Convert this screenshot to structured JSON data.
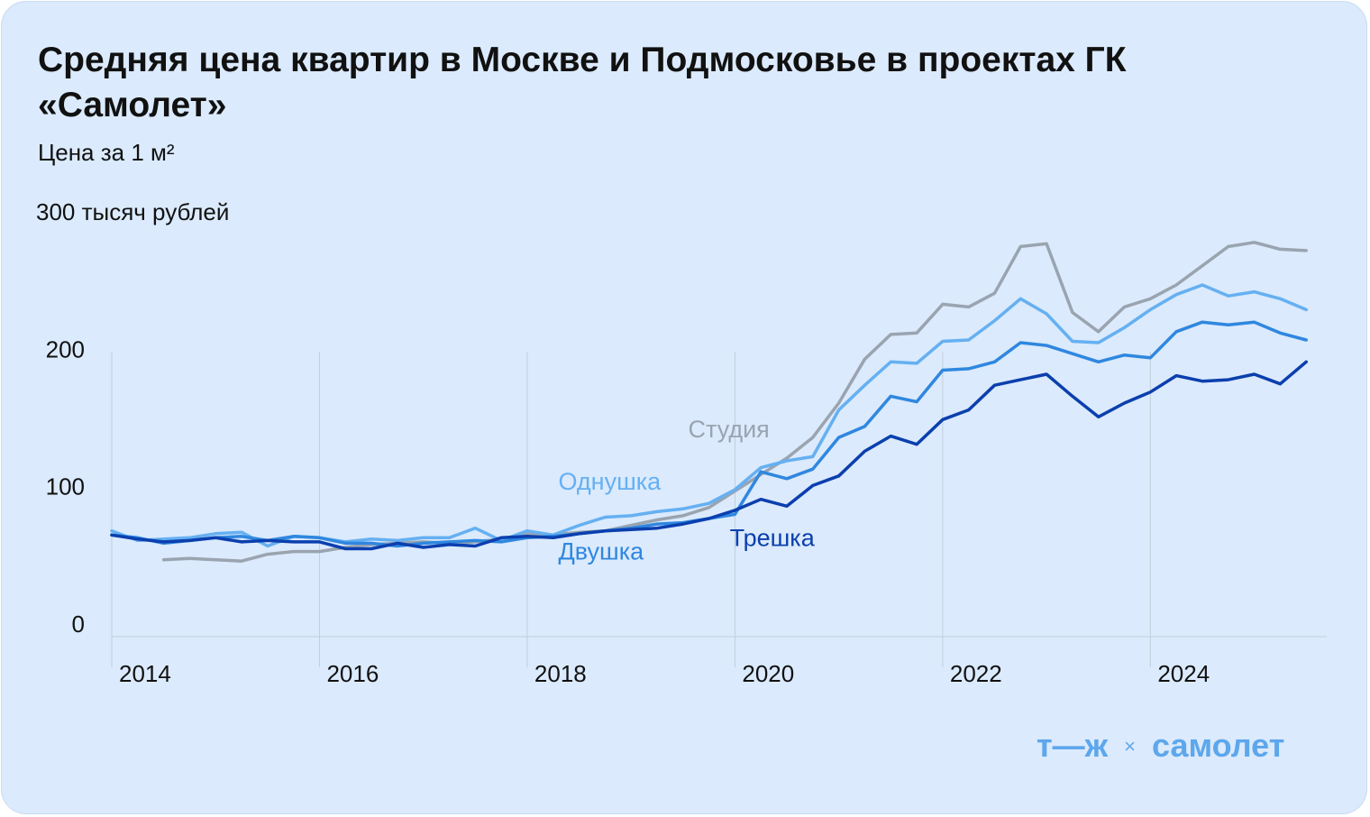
{
  "title": "Средняя цена квартир в Москве и Подмосковье в проектах ГК «Самолет»",
  "subtitle": "Цена за 1 м²",
  "logo": {
    "left": "т—ж",
    "separator": "×",
    "right": "самолет"
  },
  "colors": {
    "background": "#dbeafc",
    "grid": "#c3cedb",
    "text": "#111111"
  },
  "chart_data": {
    "type": "line",
    "ylim": [
      0,
      300
    ],
    "yticks": [
      {
        "value": 300,
        "label": "300 тысяч рублей"
      },
      {
        "value": 200,
        "label": "200"
      },
      {
        "value": 100,
        "label": "100"
      },
      {
        "value": 0,
        "label": "0"
      }
    ],
    "xlim": [
      2014,
      2025.75
    ],
    "xticks": [
      {
        "value": 2014,
        "label": "2014"
      },
      {
        "value": 2016,
        "label": "2016"
      },
      {
        "value": 2018,
        "label": "2018"
      },
      {
        "value": 2020,
        "label": "2020"
      },
      {
        "value": 2022,
        "label": "2022"
      },
      {
        "value": 2024,
        "label": "2024"
      }
    ],
    "grid": "vertical",
    "series": [
      {
        "name": "Студия",
        "color": "#9aa4b0",
        "label_x": 2019.55,
        "label_y": 145,
        "x": [
          2014.5,
          2014.75,
          2015,
          2015.25,
          2015.5,
          2015.75,
          2016,
          2016.25,
          2016.5,
          2016.75,
          2017,
          2017.25,
          2017.5,
          2017.75,
          2018,
          2018.25,
          2018.5,
          2018.75,
          2019,
          2019.25,
          2019.5,
          2019.75,
          2020,
          2020.25,
          2020.5,
          2020.75,
          2021,
          2021.25,
          2021.5,
          2021.75,
          2022,
          2022.25,
          2022.5,
          2022.75,
          2023,
          2023.25,
          2023.5,
          2023.75,
          2024,
          2024.25,
          2024.5,
          2024.75,
          2025,
          2025.25,
          2025.5
        ],
        "y": [
          56,
          57,
          56,
          55,
          60,
          62,
          62,
          65,
          67,
          68,
          69,
          68,
          69,
          71,
          75,
          74,
          76,
          77,
          81,
          85,
          88,
          94,
          106,
          118,
          130,
          145,
          170,
          202,
          220,
          221,
          242,
          240,
          250,
          284,
          286,
          236,
          222,
          240,
          246,
          256,
          270,
          284,
          287,
          282,
          281
        ]
      },
      {
        "name": "Однушка",
        "color": "#65b0f2",
        "label_x": 2018.3,
        "label_y": 107,
        "x": [
          2014,
          2014.25,
          2014.5,
          2014.75,
          2015,
          2015.25,
          2015.5,
          2015.75,
          2016,
          2016.25,
          2016.5,
          2016.75,
          2017,
          2017.25,
          2017.5,
          2017.75,
          2018,
          2018.25,
          2018.5,
          2018.75,
          2019,
          2019.25,
          2019.5,
          2019.75,
          2020,
          2020.25,
          2020.5,
          2020.75,
          2021,
          2021.25,
          2021.5,
          2021.75,
          2022,
          2022.25,
          2022.5,
          2022.75,
          2023,
          2023.25,
          2023.5,
          2023.75,
          2024,
          2024.25,
          2024.5,
          2024.75,
          2025,
          2025.25,
          2025.5
        ],
        "y": [
          77,
          70,
          71,
          72,
          75,
          76,
          66,
          73,
          72,
          69,
          71,
          70,
          72,
          72,
          79,
          70,
          77,
          74,
          81,
          87,
          88,
          91,
          93,
          97,
          107,
          123,
          128,
          131,
          165,
          183,
          200,
          199,
          215,
          216,
          230,
          246,
          235,
          215,
          214,
          225,
          238,
          249,
          256,
          248,
          251,
          246,
          238
        ]
      },
      {
        "name": "Двушка",
        "color": "#2f87df",
        "label_x": 2018.3,
        "label_y": 56,
        "x": [
          2014,
          2014.25,
          2014.5,
          2014.75,
          2015,
          2015.25,
          2015.5,
          2015.75,
          2016,
          2016.25,
          2016.5,
          2016.75,
          2017,
          2017.25,
          2017.5,
          2017.75,
          2018,
          2018.25,
          2018.5,
          2018.75,
          2019,
          2019.25,
          2019.5,
          2019.75,
          2020,
          2020.25,
          2020.5,
          2020.75,
          2021,
          2021.25,
          2021.5,
          2021.75,
          2022,
          2022.25,
          2022.5,
          2022.75,
          2023,
          2023.25,
          2023.5,
          2023.75,
          2024,
          2024.25,
          2024.5,
          2024.75,
          2025,
          2025.25,
          2025.5
        ],
        "y": [
          74,
          72,
          68,
          70,
          72,
          73,
          70,
          73,
          72,
          68,
          68,
          66,
          68,
          69,
          70,
          69,
          72,
          73,
          75,
          77,
          79,
          82,
          83,
          86,
          89,
          120,
          115,
          122,
          145,
          153,
          175,
          171,
          194,
          195,
          200,
          214,
          212,
          206,
          200,
          205,
          203,
          222,
          229,
          227,
          229,
          221,
          216
        ]
      },
      {
        "name": "Трешка",
        "color": "#0b3fae",
        "label_x": 2019.95,
        "label_y": 66,
        "x": [
          2014,
          2014.25,
          2014.5,
          2014.75,
          2015,
          2015.25,
          2015.5,
          2015.75,
          2016,
          2016.25,
          2016.5,
          2016.75,
          2017,
          2017.25,
          2017.5,
          2017.75,
          2018,
          2018.25,
          2018.5,
          2018.75,
          2019,
          2019.25,
          2019.5,
          2019.75,
          2020,
          2020.25,
          2020.5,
          2020.75,
          2021,
          2021.25,
          2021.5,
          2021.75,
          2022,
          2022.25,
          2022.5,
          2022.75,
          2023,
          2023.25,
          2023.5,
          2023.75,
          2024,
          2024.25,
          2024.5,
          2024.75,
          2025,
          2025.25,
          2025.5
        ],
        "y": [
          74,
          71,
          69,
          70,
          72,
          69,
          70,
          69,
          69,
          64,
          64,
          68,
          65,
          67,
          66,
          72,
          73,
          72,
          75,
          77,
          78,
          79,
          82,
          86,
          92,
          100,
          95,
          110,
          117,
          135,
          146,
          140,
          158,
          165,
          183,
          187,
          191,
          175,
          160,
          170,
          178,
          190,
          186,
          187,
          191,
          184,
          200
        ]
      }
    ]
  }
}
